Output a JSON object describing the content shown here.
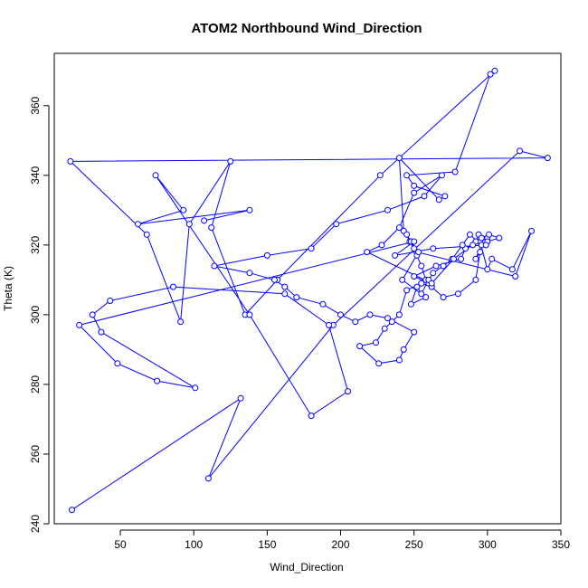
{
  "chart_data": {
    "type": "line",
    "title": "ATOM2 Northbound Wind_Direction",
    "xlabel": "Wind_Direction",
    "ylabel": "Theta (K)",
    "xlim": [
      5,
      350
    ],
    "ylim": [
      240,
      375
    ],
    "xticks": [
      50,
      100,
      150,
      200,
      250,
      300,
      350
    ],
    "yticks": [
      240,
      260,
      280,
      300,
      320,
      340,
      360
    ],
    "grid": false,
    "legend": "none",
    "colors": {
      "series": "#0000ff",
      "axis": "#000000",
      "background": "#ffffff"
    },
    "series": [
      {
        "markers": "open-circle",
        "x": [
          17,
          132,
          110,
          195,
          322,
          341,
          16,
          68,
          91,
          97,
          125,
          112,
          135,
          157,
          227,
          305,
          302,
          278,
          245,
          250,
          271,
          267,
          240,
          243,
          252,
          319,
          330,
          317,
          303,
          300,
          295,
          292,
          294,
          300,
          290,
          285,
          282,
          265,
          250,
          260,
          262,
          258,
          255,
          252,
          250,
          247,
          245,
          248,
          253,
          242,
          258,
          248,
          252,
          255,
          260,
          263,
          270,
          276,
          283,
          288,
          296,
          292,
          295,
          292,
          280,
          270,
          262,
          255,
          245,
          240,
          235,
          230,
          224,
          213,
          226,
          240,
          243,
          250,
          232,
          220,
          210,
          200,
          188,
          170,
          162,
          155,
          138,
          114,
          150,
          180,
          197,
          232,
          257,
          269,
          250,
          240,
          228,
          218,
          262,
          277,
          296,
          301,
          308,
          300,
          299,
          263,
          237,
          250,
          22,
          48,
          75,
          101,
          37,
          31,
          43,
          86,
          162,
          192,
          205,
          180,
          138,
          74,
          93,
          62,
          138,
          107
        ],
        "y": [
          244,
          276,
          253,
          297,
          347,
          345,
          344,
          323,
          298,
          326,
          344,
          325,
          300,
          310,
          340,
          370,
          369,
          341,
          340,
          337,
          334,
          333,
          345,
          324,
          318,
          311,
          324,
          313,
          316,
          313,
          321,
          321,
          323,
          322,
          320,
          319,
          316,
          314,
          311,
          309,
          308,
          310,
          314,
          317,
          319,
          321,
          323,
          321,
          318,
          310,
          305,
          303,
          308,
          306,
          310,
          312,
          314,
          316,
          320,
          323,
          320,
          316,
          318,
          310,
          306,
          305,
          308,
          309,
          307,
          300,
          298,
          296,
          292,
          291,
          286,
          287,
          290,
          295,
          299,
          300,
          298,
          300,
          303,
          305,
          308,
          310,
          312,
          314,
          317,
          319,
          326,
          330,
          334,
          340,
          335,
          325,
          320,
          318,
          309,
          316,
          322,
          323,
          322,
          321,
          320,
          319,
          317,
          321,
          297,
          286,
          281,
          279,
          295,
          300,
          304,
          308,
          306,
          297,
          278,
          271,
          300,
          340,
          330,
          326,
          330,
          327
        ]
      }
    ]
  }
}
